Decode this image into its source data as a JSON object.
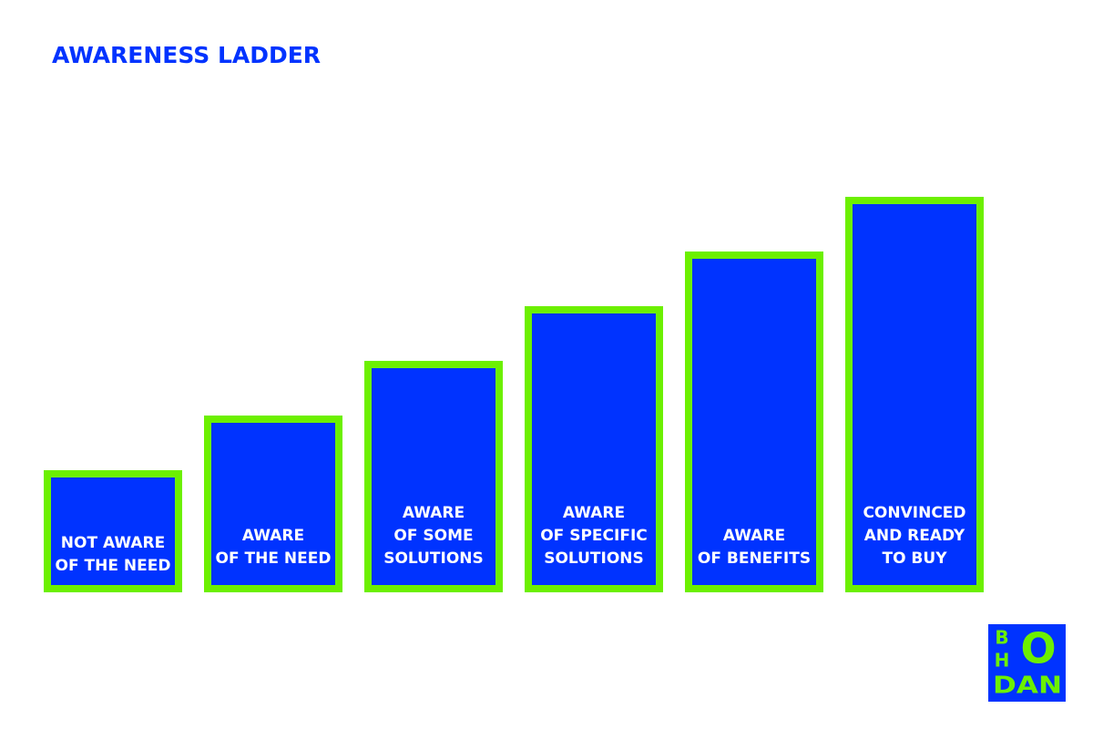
{
  "header": {
    "title": "AWARENESS LADDER"
  },
  "steps": [
    {
      "lines": [
        "NOT AWARE",
        "OF THE NEED"
      ]
    },
    {
      "lines": [
        "AWARE",
        "OF THE NEED"
      ]
    },
    {
      "lines": [
        "AWARE",
        "OF SOME",
        "SOLUTIONS"
      ]
    },
    {
      "lines": [
        "AWARE",
        "OF SPECIFIC",
        "SOLUTIONS"
      ]
    },
    {
      "lines": [
        "AWARE",
        "OF BENEFITS"
      ]
    },
    {
      "lines": [
        "CONVINCED",
        "AND READY",
        "TO BUY"
      ]
    }
  ],
  "logo": {
    "letters": [
      "B",
      "H",
      "O",
      "DAN"
    ]
  }
}
